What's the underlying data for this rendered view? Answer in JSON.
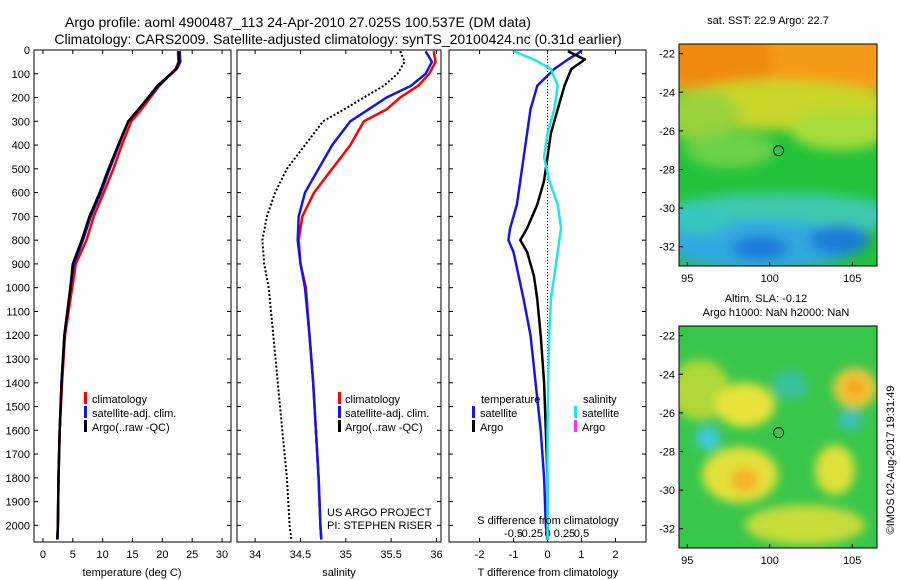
{
  "header": {
    "line1": "Argo profile: aoml 4900487_113 24-Apr-2010 27.025S 100.537E (DM data)",
    "line2": "Climatology: CARS2009. Satellite-adjusted climatology: synTS_20100424.nc (0.31d earlier)"
  },
  "credits": {
    "project": "US ARGO PROJECT",
    "pi": "PI: STEPHEN RISER",
    "stamp": "©IMOS 02-Aug-2017 19:31:49"
  },
  "colors": {
    "climatology": "#ff0000",
    "satellite": "#1515e6",
    "argo": "#000000",
    "salinity_satellite": "#22e6e6",
    "salinity_argo": "#ff33ff"
  },
  "chart_data": [
    {
      "type": "line",
      "id": "temperature-profile",
      "xlabel": "temperature (deg C)",
      "ylabel": "",
      "xlim": [
        -1.5,
        31.5
      ],
      "ylim": [
        0,
        2070
      ],
      "y_inverted": true,
      "x_ticks": [
        0,
        5,
        10,
        15,
        20,
        25,
        30
      ],
      "y_ticks": [
        0,
        100,
        200,
        300,
        400,
        500,
        600,
        700,
        800,
        900,
        1000,
        1100,
        1200,
        1300,
        1400,
        1500,
        1600,
        1700,
        1800,
        1900,
        2000
      ],
      "legend": [
        "climatology",
        "satellite-adj. clim.",
        "Argo(..raw -QC)"
      ],
      "series": [
        {
          "name": "climatology",
          "color": "#ff0000",
          "x": [
            22.6,
            22.7,
            22.2,
            19.5,
            16.5,
            14.8,
            13.2,
            11.8,
            10.2,
            8.5,
            7.3,
            5.5,
            4.9,
            4.3,
            3.7,
            3.2,
            2.8,
            2.6,
            2.5,
            2.4
          ],
          "y": [
            5,
            50,
            80,
            150,
            250,
            300,
            400,
            500,
            600,
            700,
            800,
            900,
            1000,
            1100,
            1200,
            1400,
            1600,
            1800,
            2000,
            2060
          ]
        },
        {
          "name": "satellite-adj. clim.",
          "color": "#1515e6",
          "x": [
            22.9,
            23.0,
            22.4,
            19.4,
            16.0,
            14.3,
            12.7,
            11.2,
            9.7,
            8.0,
            6.7,
            5.2,
            4.6,
            4.1,
            3.6,
            3.1,
            2.8,
            2.6,
            2.5,
            2.4
          ],
          "y": [
            5,
            50,
            80,
            150,
            250,
            300,
            400,
            500,
            600,
            700,
            800,
            900,
            1000,
            1100,
            1200,
            1400,
            1600,
            1800,
            2000,
            2060
          ]
        },
        {
          "name": "Argo(..raw -QC)",
          "color": "#000000",
          "x": [
            22.7,
            22.8,
            22.3,
            19.2,
            16.0,
            14.3,
            12.6,
            11.0,
            9.5,
            7.8,
            6.5,
            5.0,
            4.6,
            4.1,
            3.6,
            3.1,
            2.8,
            2.6,
            2.5,
            2.4
          ],
          "y": [
            5,
            50,
            80,
            150,
            250,
            300,
            400,
            500,
            600,
            700,
            800,
            900,
            1000,
            1100,
            1200,
            1400,
            1600,
            1800,
            2000,
            2060
          ]
        }
      ]
    },
    {
      "type": "line",
      "id": "salinity-profile",
      "xlabel": "salinity",
      "ylabel": "",
      "xlim": [
        33.8,
        36.05
      ],
      "ylim": [
        0,
        2070
      ],
      "y_inverted": true,
      "x_ticks": [
        34,
        34.5,
        35,
        35.5,
        36
      ],
      "legend": [
        "climatology",
        "satellite-adj. clim.",
        "Argo(..raw -QC)"
      ],
      "series": [
        {
          "name": "climatology",
          "color": "#ff0000",
          "x": [
            35.97,
            35.99,
            35.92,
            35.8,
            35.6,
            35.45,
            35.2,
            35.05,
            34.85,
            34.65,
            34.52,
            34.48,
            34.5,
            34.56,
            34.6,
            34.64,
            34.67,
            34.7,
            34.72,
            34.73
          ],
          "y": [
            5,
            50,
            100,
            150,
            200,
            250,
            300,
            400,
            500,
            600,
            700,
            800,
            900,
            1000,
            1200,
            1400,
            1600,
            1800,
            2000,
            2060
          ]
        },
        {
          "name": "satellite-adj. clim.",
          "color": "#1515e6",
          "x": [
            35.88,
            35.95,
            35.88,
            35.72,
            35.45,
            35.25,
            35.05,
            34.85,
            34.7,
            34.55,
            34.48,
            34.47,
            34.5,
            34.55,
            34.6,
            34.64,
            34.67,
            34.7,
            34.72,
            34.73
          ],
          "y": [
            5,
            50,
            100,
            150,
            200,
            250,
            300,
            400,
            500,
            600,
            700,
            800,
            900,
            1000,
            1200,
            1400,
            1600,
            1800,
            2000,
            2060
          ]
        },
        {
          "name": "Argo(..raw -QC)",
          "color": "#000000",
          "dashed": true,
          "x": [
            35.6,
            35.65,
            35.57,
            35.42,
            35.2,
            34.98,
            34.75,
            34.55,
            34.35,
            34.22,
            34.13,
            34.08,
            34.1,
            34.15,
            34.2,
            34.25,
            34.3,
            34.35,
            34.38,
            34.4
          ],
          "y": [
            5,
            50,
            100,
            150,
            200,
            250,
            300,
            400,
            500,
            600,
            700,
            800,
            900,
            1000,
            1200,
            1400,
            1600,
            1800,
            2000,
            2060
          ]
        }
      ]
    },
    {
      "type": "line",
      "id": "difference-profile",
      "xlabel": "T difference from climatology",
      "top_label": "S difference from climatology",
      "xlim": [
        -2.9,
        2.9
      ],
      "ylim": [
        0,
        2070
      ],
      "y_inverted": true,
      "x_ticks": [
        -2,
        -1,
        0,
        1,
        2
      ],
      "top_ticks": [
        -0.5,
        -0.25,
        0,
        0.25,
        0.5
      ],
      "legend_headers": [
        "temperature",
        "salinity"
      ],
      "legend": [
        "satellite",
        "Argo",
        "satellite",
        "Argo"
      ],
      "series": [
        {
          "name": "temperature satellite",
          "color": "#1515e6",
          "x": [
            1.0,
            0.6,
            0.2,
            -0.3,
            -0.5,
            -0.6,
            -0.7,
            -0.8,
            -0.9,
            -1.1,
            -1.15,
            -1.0,
            -0.85,
            -0.7,
            -0.5,
            -0.35,
            -0.2,
            -0.1,
            -0.05,
            0.0
          ],
          "y": [
            5,
            40,
            80,
            150,
            250,
            350,
            450,
            550,
            650,
            750,
            800,
            850,
            950,
            1050,
            1200,
            1400,
            1600,
            1800,
            2000,
            2060
          ]
        },
        {
          "name": "temperature Argo",
          "color": "#000000",
          "x": [
            0.6,
            1.1,
            0.7,
            0.5,
            0.3,
            0.1,
            0.0,
            -0.1,
            -0.3,
            -0.6,
            -0.8,
            -0.6,
            -0.4,
            -0.3,
            -0.2,
            -0.1,
            -0.05,
            0.0,
            0.0,
            0.0
          ],
          "y": [
            5,
            40,
            80,
            150,
            250,
            350,
            450,
            550,
            650,
            750,
            800,
            850,
            950,
            1050,
            1200,
            1400,
            1600,
            1800,
            2000,
            2060
          ]
        },
        {
          "name": "salinity satellite",
          "color": "#22e6e6",
          "x": [
            -1.0,
            -0.4,
            0.1,
            0.3,
            0.2,
            0.0,
            -0.1,
            0.05,
            0.3,
            0.4,
            0.35,
            0.3,
            0.2,
            0.1,
            0.05,
            0.02,
            0.0,
            0.0,
            0.0,
            0.0
          ],
          "y": [
            5,
            40,
            80,
            150,
            250,
            350,
            450,
            550,
            650,
            750,
            800,
            850,
            950,
            1050,
            1200,
            1400,
            1600,
            1800,
            2000,
            2060
          ]
        }
      ]
    },
    {
      "type": "heatmap",
      "id": "sst-map",
      "title": "sat. SST: 22.9 Argo: 22.7",
      "xlim": [
        94.5,
        106.5
      ],
      "ylim": [
        -33,
        -21.5
      ],
      "x_ticks": [
        95,
        100,
        105
      ],
      "y_ticks": [
        -22,
        -24,
        -26,
        -28,
        -30,
        -32
      ],
      "marker": {
        "lon": 100.537,
        "lat": -27.025
      }
    },
    {
      "type": "heatmap",
      "id": "sla-map",
      "title": "Altim. SLA: -0.12",
      "subtitle": "Argo h1000: NaN h2000: NaN",
      "xlim": [
        94.5,
        106.5
      ],
      "ylim": [
        -33,
        -21.5
      ],
      "x_ticks": [
        95,
        100,
        105
      ],
      "y_ticks": [
        -22,
        -24,
        -26,
        -28,
        -30,
        -32
      ],
      "marker": {
        "lon": 100.537,
        "lat": -27.025
      }
    }
  ]
}
